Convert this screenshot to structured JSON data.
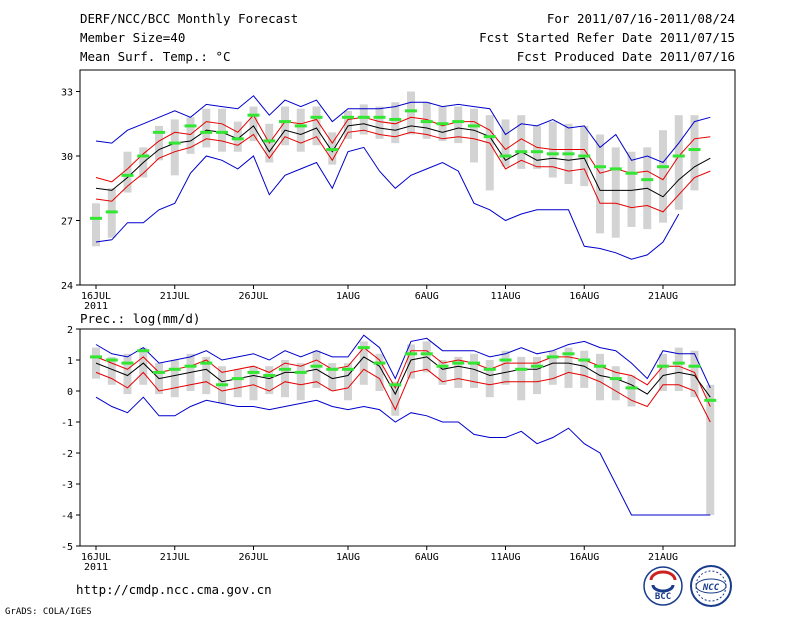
{
  "header": {
    "title_left": "DERF/NCC/BCC Monthly Forecast",
    "member_size": "Member Size=40",
    "variable_1": "Mean Surf. Temp.: °C",
    "for_range": "For 2011/07/16-2011/08/24",
    "fcst_started": "Fcst Started Refer Date 2011/07/15",
    "fcst_produced": "Fcst Produced Date 2011/07/16"
  },
  "variable_2": "Prec.: log(mm/d)",
  "footer": {
    "url": "http://cmdp.ncc.cma.gov.cn",
    "grads": "GrADS: COLA/IGES",
    "logo_bcc": "BCC",
    "logo_ncc": "NCC"
  },
  "colors": {
    "box": "#d3d3d3",
    "median": "#33e633",
    "mean": "#000000",
    "spread": "#e60000",
    "range": "#0000cc"
  },
  "chart_data": [
    {
      "type": "line",
      "title": "Mean Surf. Temp.: °C",
      "ylim": [
        24,
        34
      ],
      "yticks": [
        24,
        27,
        30,
        33
      ],
      "ytick_labels": [
        "24",
        "27",
        "30",
        "33"
      ],
      "x_days": 40,
      "xticks": [
        1,
        6,
        11,
        17,
        22,
        27,
        32,
        37
      ],
      "xtick_labels": [
        "16JUL",
        "21JUL",
        "26JUL",
        "1AUG",
        "6AUG",
        "11AUG",
        "16AUG",
        "21AUG"
      ],
      "year_label": "2011",
      "series": [
        {
          "name": "max",
          "values": [
            30.7,
            30.6,
            31.2,
            31.5,
            31.8,
            32.1,
            31.8,
            32.4,
            32.3,
            32.2,
            32.8,
            31.9,
            32.6,
            32.3,
            32.6,
            31.6,
            32.2,
            32.2,
            32.2,
            32.3,
            32.5,
            32.5,
            32.3,
            32.4,
            32.3,
            32.2,
            31.0,
            31.5,
            31.4,
            31.7,
            31.3,
            31.4,
            30.4,
            31.0,
            29.8,
            30.0,
            29.7,
            30.6,
            31.6,
            31.8
          ]
        },
        {
          "name": "upper",
          "values": [
            29.0,
            28.8,
            29.4,
            30.1,
            30.7,
            31.1,
            31.0,
            31.6,
            31.5,
            31.1,
            31.9,
            30.6,
            31.6,
            31.5,
            31.7,
            30.6,
            31.7,
            31.8,
            31.6,
            31.5,
            31.8,
            31.7,
            31.4,
            31.6,
            31.6,
            31.2,
            30.3,
            30.8,
            30.4,
            30.3,
            30.3,
            30.3,
            29.2,
            29.4,
            29.2,
            29.3,
            28.9,
            30.0,
            30.8,
            30.9
          ]
        },
        {
          "name": "mean",
          "values": [
            28.5,
            28.4,
            29.0,
            29.7,
            30.3,
            30.6,
            30.7,
            31.2,
            31.1,
            30.8,
            31.4,
            30.2,
            31.2,
            31.0,
            31.3,
            30.2,
            31.4,
            31.5,
            31.3,
            31.2,
            31.4,
            31.3,
            31.1,
            31.3,
            31.2,
            30.9,
            29.8,
            30.2,
            29.8,
            29.9,
            29.8,
            29.9,
            28.4,
            28.4,
            28.4,
            28.5,
            28.1,
            28.9,
            29.5,
            29.9
          ]
        },
        {
          "name": "lower",
          "values": [
            28.0,
            27.9,
            28.6,
            29.2,
            29.9,
            30.2,
            30.4,
            30.8,
            30.7,
            30.5,
            31.0,
            29.9,
            30.9,
            30.6,
            30.9,
            29.8,
            31.1,
            31.2,
            31.0,
            30.9,
            31.1,
            31.0,
            30.8,
            30.9,
            30.8,
            30.6,
            29.4,
            29.8,
            29.5,
            29.5,
            29.3,
            29.4,
            27.8,
            27.8,
            27.6,
            27.7,
            27.4,
            28.2,
            29.0,
            29.3
          ]
        },
        {
          "name": "min",
          "values": [
            26.0,
            26.1,
            26.9,
            26.9,
            27.5,
            27.8,
            29.2,
            30.0,
            29.8,
            29.4,
            30.0,
            28.2,
            29.1,
            29.4,
            29.7,
            28.5,
            30.2,
            30.4,
            29.3,
            28.5,
            29.1,
            29.4,
            29.7,
            29.3,
            27.8,
            27.5,
            27.0,
            27.3,
            27.5,
            27.5,
            27.5,
            25.8,
            25.7,
            25.5,
            25.2,
            25.4,
            26.0,
            27.3,
            null,
            null
          ]
        },
        {
          "name": "median",
          "values": [
            27.1,
            27.4,
            29.1,
            30.0,
            31.1,
            30.6,
            31.4,
            31.1,
            31.1,
            30.8,
            31.9,
            30.7,
            31.6,
            31.4,
            31.8,
            30.3,
            31.8,
            31.8,
            31.8,
            31.7,
            32.1,
            31.6,
            31.5,
            31.6,
            31.4,
            30.9,
            30.0,
            30.2,
            30.2,
            30.1,
            30.1,
            30.0,
            29.5,
            29.4,
            29.2,
            28.9,
            29.5,
            30.0,
            30.3,
            null
          ]
        },
        {
          "name": "box_top",
          "values": [
            27.8,
            28.5,
            30.2,
            30.4,
            31.4,
            31.7,
            31.8,
            32.2,
            32.2,
            31.6,
            32.3,
            31.5,
            32.3,
            32.2,
            32.3,
            31.1,
            32.1,
            32.4,
            32.3,
            32.5,
            33.0,
            32.5,
            32.3,
            32.3,
            32.2,
            31.9,
            31.7,
            31.9,
            31.4,
            31.6,
            31.5,
            31.4,
            31.0,
            30.4,
            30.2,
            30.4,
            31.2,
            31.9,
            31.9,
            null
          ]
        },
        {
          "name": "box_bottom",
          "values": [
            25.8,
            26.2,
            28.3,
            29.0,
            29.8,
            29.1,
            30.1,
            30.4,
            30.2,
            30.2,
            30.7,
            29.7,
            30.5,
            30.2,
            30.5,
            29.6,
            30.8,
            31.0,
            30.8,
            30.6,
            31.0,
            30.8,
            30.7,
            30.6,
            29.7,
            28.4,
            29.5,
            29.4,
            29.4,
            29.0,
            28.7,
            28.6,
            26.4,
            26.2,
            26.7,
            26.6,
            26.9,
            27.5,
            28.4,
            null
          ]
        }
      ]
    },
    {
      "type": "line",
      "title": "Prec.: log(mm/d)",
      "ylim": [
        -5,
        2
      ],
      "yticks": [
        -5,
        -4,
        -3,
        -2,
        -1,
        0,
        1,
        2
      ],
      "ytick_labels": [
        "-5",
        "-4",
        "-3",
        "-2",
        "-1",
        "0",
        "1",
        "2"
      ],
      "x_days": 40,
      "xticks": [
        1,
        6,
        11,
        17,
        22,
        27,
        32,
        37
      ],
      "xtick_labels": [
        "16JUL",
        "21JUL",
        "26JUL",
        "1AUG",
        "6AUG",
        "11AUG",
        "16AUG",
        "21AUG"
      ],
      "year_label": "2011",
      "series": [
        {
          "name": "max",
          "values": [
            1.5,
            1.2,
            1.1,
            1.4,
            0.9,
            1.0,
            1.1,
            1.3,
            1.0,
            1.1,
            1.2,
            1.0,
            1.3,
            1.1,
            1.3,
            1.1,
            1.1,
            1.8,
            1.4,
            0.4,
            1.6,
            1.7,
            1.3,
            1.3,
            1.3,
            1.1,
            1.2,
            1.4,
            1.2,
            1.3,
            1.5,
            1.6,
            1.4,
            1.3,
            0.9,
            0.4,
            1.3,
            1.2,
            1.2,
            0.1
          ]
        },
        {
          "name": "upper",
          "values": [
            1.1,
            0.9,
            0.7,
            1.1,
            0.6,
            0.7,
            0.8,
            1.0,
            0.6,
            0.7,
            0.8,
            0.6,
            0.9,
            0.8,
            1.0,
            0.7,
            0.8,
            1.4,
            1.0,
            0.1,
            1.3,
            1.3,
            0.9,
            1.0,
            0.9,
            0.7,
            0.9,
            0.9,
            0.9,
            1.1,
            1.1,
            1.0,
            0.8,
            0.6,
            0.5,
            0.2,
            0.8,
            0.8,
            0.6,
            -0.5
          ]
        },
        {
          "name": "mean",
          "values": [
            0.9,
            0.7,
            0.5,
            0.9,
            0.4,
            0.5,
            0.6,
            0.7,
            0.3,
            0.4,
            0.5,
            0.4,
            0.6,
            0.6,
            0.7,
            0.4,
            0.5,
            1.1,
            0.8,
            -0.1,
            1.0,
            1.1,
            0.7,
            0.8,
            0.7,
            0.5,
            0.6,
            0.7,
            0.7,
            0.9,
            0.9,
            0.8,
            0.5,
            0.4,
            0.2,
            -0.1,
            0.5,
            0.6,
            0.5,
            -0.2
          ]
        },
        {
          "name": "lower",
          "values": [
            0.6,
            0.4,
            0.1,
            0.6,
            0.0,
            0.1,
            0.2,
            0.3,
            0.0,
            0.1,
            0.2,
            0.0,
            0.3,
            0.2,
            0.3,
            0.0,
            0.1,
            0.7,
            0.4,
            -0.6,
            0.6,
            0.7,
            0.3,
            0.4,
            0.3,
            0.2,
            0.3,
            0.3,
            0.3,
            0.4,
            0.6,
            0.5,
            0.3,
            0.0,
            -0.3,
            -0.5,
            0.2,
            0.2,
            0.0,
            -1.0
          ]
        },
        {
          "name": "min",
          "values": [
            -0.2,
            -0.5,
            -0.7,
            -0.2,
            -0.8,
            -0.8,
            -0.5,
            -0.3,
            -0.4,
            -0.5,
            -0.5,
            -0.6,
            -0.5,
            -0.4,
            -0.3,
            -0.5,
            -0.6,
            -0.5,
            -0.6,
            -1.0,
            -0.7,
            -0.8,
            -1.0,
            -1.0,
            -1.4,
            -1.5,
            -1.5,
            -1.3,
            -1.7,
            -1.5,
            -1.2,
            -1.7,
            -2.0,
            -3.0,
            -4.0,
            -4.0,
            -4.0,
            -4.0,
            -4.0,
            -4.0
          ]
        },
        {
          "name": "median",
          "values": [
            1.1,
            1.0,
            0.9,
            1.3,
            0.6,
            0.7,
            0.8,
            0.9,
            0.2,
            0.4,
            0.6,
            0.5,
            0.7,
            0.6,
            0.8,
            0.7,
            0.7,
            1.4,
            0.9,
            0.2,
            1.2,
            1.2,
            0.8,
            0.9,
            0.9,
            0.7,
            1.0,
            0.7,
            0.8,
            1.1,
            1.2,
            1.0,
            0.8,
            0.4,
            0.1,
            null,
            0.8,
            0.9,
            0.8,
            -0.3
          ]
        },
        {
          "name": "box_top",
          "values": [
            1.4,
            1.1,
            1.2,
            1.4,
            0.9,
            1.0,
            1.2,
            1.1,
            0.8,
            0.7,
            0.8,
            0.8,
            1.0,
            0.9,
            1.3,
            0.9,
            0.9,
            1.6,
            1.2,
            0.3,
            1.5,
            1.6,
            1.0,
            1.1,
            1.2,
            1.0,
            1.3,
            1.1,
            1.1,
            1.3,
            1.4,
            1.3,
            1.2,
            0.8,
            0.5,
            null,
            1.2,
            1.4,
            1.3,
            0.2
          ]
        },
        {
          "name": "box_bottom",
          "values": [
            0.4,
            0.2,
            -0.1,
            0.2,
            -0.1,
            -0.2,
            0.0,
            -0.1,
            -0.4,
            -0.2,
            -0.3,
            -0.1,
            -0.2,
            -0.3,
            0.1,
            0.0,
            -0.3,
            0.2,
            0.0,
            -0.8,
            0.4,
            0.6,
            0.2,
            0.1,
            0.1,
            -0.2,
            0.2,
            -0.3,
            -0.1,
            0.2,
            0.1,
            0.1,
            -0.3,
            -0.3,
            -0.5,
            null,
            0.0,
            0.0,
            -0.2,
            -4.0
          ]
        }
      ]
    }
  ]
}
